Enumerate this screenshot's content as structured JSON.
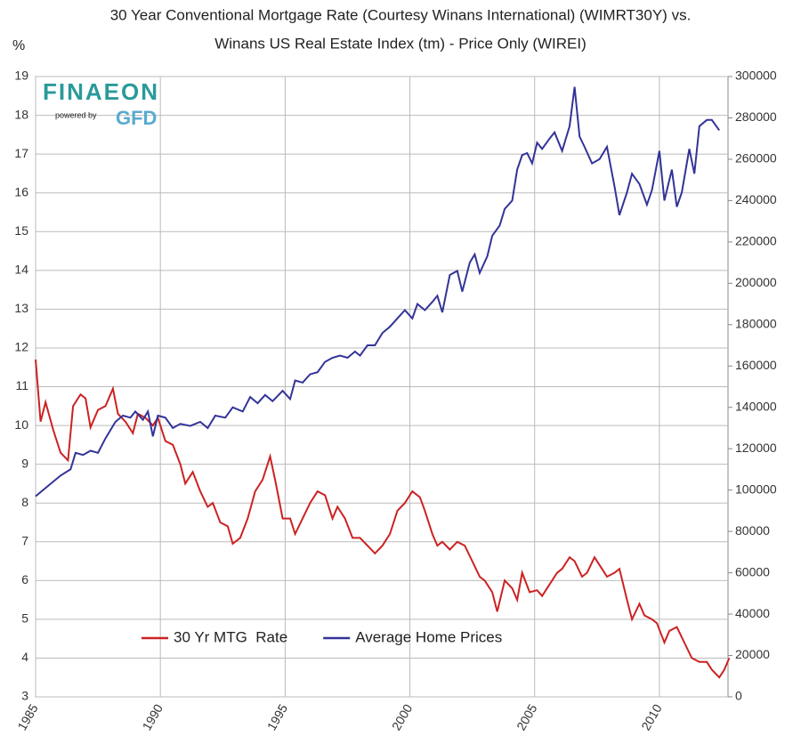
{
  "chart_data": {
    "type": "line",
    "title": [
      "30 Year Conventional Mortgage Rate (Courtesy Winans International) (WIMRT30Y) vs.",
      "Winans US Real Estate Index (tm) - Price Only (WIREI)"
    ],
    "y_label": "%",
    "logo": [
      "FINAEON",
      "powered by",
      "GFD"
    ],
    "xlim": [
      1985,
      2012.75
    ],
    "xticks": [
      1985,
      1990,
      1995,
      2000,
      2005,
      2010
    ],
    "ylim": [
      3,
      19
    ],
    "yticks": [
      3,
      4,
      5,
      6,
      7,
      8,
      9,
      10,
      11,
      12,
      13,
      14,
      15,
      16,
      17,
      18,
      19
    ],
    "y2lim": [
      0,
      300000
    ],
    "y2ticks": [
      0,
      20000,
      40000,
      60000,
      80000,
      100000,
      120000,
      140000,
      160000,
      180000,
      200000,
      220000,
      240000,
      260000,
      280000,
      300000
    ],
    "grid": true,
    "legend": "lower center",
    "series": [
      {
        "name": "30 Yr MTG  Rate",
        "color": "#cc2222",
        "x": [
          1985.0,
          1985.2,
          1985.4,
          1985.7,
          1986.0,
          1986.3,
          1986.5,
          1986.8,
          1987.0,
          1987.2,
          1987.5,
          1987.8,
          1988.1,
          1988.3,
          1988.6,
          1988.9,
          1989.1,
          1989.4,
          1989.7,
          1989.9,
          1990.2,
          1990.5,
          1990.8,
          1991.0,
          1991.3,
          1991.6,
          1991.9,
          1992.1,
          1992.4,
          1992.7,
          1992.9,
          1993.2,
          1993.5,
          1993.8,
          1994.1,
          1994.4,
          1994.6,
          1994.9,
          1995.2,
          1995.4,
          1995.7,
          1996.0,
          1996.3,
          1996.6,
          1996.9,
          1997.1,
          1997.4,
          1997.7,
          1998.0,
          1998.3,
          1998.6,
          1998.9,
          1999.2,
          1999.5,
          1999.8,
          2000.1,
          2000.4,
          2000.6,
          2000.9,
          2001.1,
          2001.3,
          2001.6,
          2001.9,
          2002.2,
          2002.5,
          2002.8,
          2003.0,
          2003.3,
          2003.5,
          2003.8,
          2004.1,
          2004.3,
          2004.5,
          2004.8,
          2005.1,
          2005.3,
          2005.6,
          2005.9,
          2006.1,
          2006.4,
          2006.6,
          2006.9,
          2007.1,
          2007.4,
          2007.7,
          2007.9,
          2008.2,
          2008.4,
          2008.7,
          2008.9,
          2009.2,
          2009.4,
          2009.7,
          2009.9,
          2010.2,
          2010.4,
          2010.7,
          2011.0,
          2011.3,
          2011.6,
          2011.9,
          2012.1,
          2012.4,
          2012.6,
          2012.8
        ],
        "values": [
          11.7,
          10.1,
          10.6,
          9.9,
          9.3,
          9.1,
          10.5,
          10.8,
          10.7,
          9.95,
          10.4,
          10.5,
          10.95,
          10.3,
          10.1,
          9.8,
          10.3,
          10.2,
          10.0,
          10.2,
          9.6,
          9.5,
          9.0,
          8.5,
          8.8,
          8.3,
          7.9,
          8.0,
          7.5,
          7.4,
          6.95,
          7.1,
          7.6,
          8.3,
          8.6,
          9.2,
          8.6,
          7.6,
          7.6,
          7.2,
          7.6,
          8.0,
          8.3,
          8.2,
          7.6,
          7.9,
          7.6,
          7.1,
          7.1,
          6.9,
          6.7,
          6.9,
          7.2,
          7.8,
          8.0,
          8.3,
          8.15,
          7.8,
          7.2,
          6.9,
          7.0,
          6.8,
          7.0,
          6.9,
          6.5,
          6.1,
          6.0,
          5.7,
          5.2,
          6.0,
          5.8,
          5.5,
          6.2,
          5.7,
          5.75,
          5.6,
          5.9,
          6.2,
          6.3,
          6.6,
          6.5,
          6.1,
          6.2,
          6.6,
          6.3,
          6.1,
          6.2,
          6.3,
          5.5,
          5.0,
          5.4,
          5.1,
          5.0,
          4.9,
          4.4,
          4.7,
          4.8,
          4.4,
          4.0,
          3.9,
          3.9,
          3.7,
          3.5,
          3.7,
          4.0
        ]
      },
      {
        "name": "Average Home Prices",
        "color": "#333399",
        "axis": "y2",
        "x": [
          1985.0,
          1985.5,
          1986.0,
          1986.4,
          1986.6,
          1986.9,
          1987.2,
          1987.5,
          1987.8,
          1988.2,
          1988.5,
          1988.8,
          1989.0,
          1989.3,
          1989.5,
          1989.7,
          1989.9,
          1990.2,
          1990.5,
          1990.8,
          1991.2,
          1991.6,
          1991.9,
          1992.2,
          1992.6,
          1992.9,
          1993.3,
          1993.6,
          1993.9,
          1994.2,
          1994.5,
          1994.9,
          1995.2,
          1995.4,
          1995.7,
          1996.0,
          1996.3,
          1996.6,
          1996.9,
          1997.2,
          1997.5,
          1997.8,
          1998.0,
          1998.3,
          1998.6,
          1998.9,
          1999.2,
          1999.5,
          1999.8,
          2000.1,
          2000.3,
          2000.6,
          2000.9,
          2001.1,
          2001.3,
          2001.6,
          2001.9,
          2002.1,
          2002.4,
          2002.6,
          2002.8,
          2003.1,
          2003.3,
          2003.6,
          2003.8,
          2004.1,
          2004.3,
          2004.5,
          2004.7,
          2004.9,
          2005.1,
          2005.3,
          2005.6,
          2005.8,
          2006.1,
          2006.4,
          2006.6,
          2006.8,
          2007.0,
          2007.3,
          2007.6,
          2007.9,
          2008.2,
          2008.4,
          2008.7,
          2008.9,
          2009.2,
          2009.5,
          2009.7,
          2010.0,
          2010.2,
          2010.5,
          2010.7,
          2010.9,
          2011.2,
          2011.4,
          2011.6,
          2011.9,
          2012.1,
          2012.4
        ],
        "values": [
          97000,
          102000,
          107000,
          110000,
          118000,
          117000,
          119000,
          118000,
          125000,
          133000,
          136000,
          135000,
          138000,
          134000,
          138000,
          126000,
          136000,
          135000,
          130000,
          132000,
          131000,
          133000,
          130000,
          136000,
          135000,
          140000,
          138000,
          145000,
          142000,
          146000,
          143000,
          148000,
          144000,
          153000,
          152000,
          156000,
          157000,
          162000,
          164000,
          165000,
          164000,
          167000,
          165000,
          170000,
          170000,
          176000,
          179000,
          183000,
          187000,
          183000,
          190000,
          187000,
          191000,
          194000,
          186000,
          204000,
          206000,
          196000,
          210000,
          214000,
          205000,
          213000,
          223000,
          228000,
          236000,
          240000,
          255000,
          262000,
          263000,
          258000,
          268000,
          265000,
          270000,
          273000,
          264000,
          276000,
          295000,
          271000,
          266000,
          258000,
          260000,
          266000,
          247000,
          233000,
          244000,
          253000,
          248000,
          238000,
          245000,
          264000,
          240000,
          255000,
          237000,
          244000,
          265000,
          253000,
          276000,
          279000,
          279000,
          274000
        ]
      }
    ]
  }
}
